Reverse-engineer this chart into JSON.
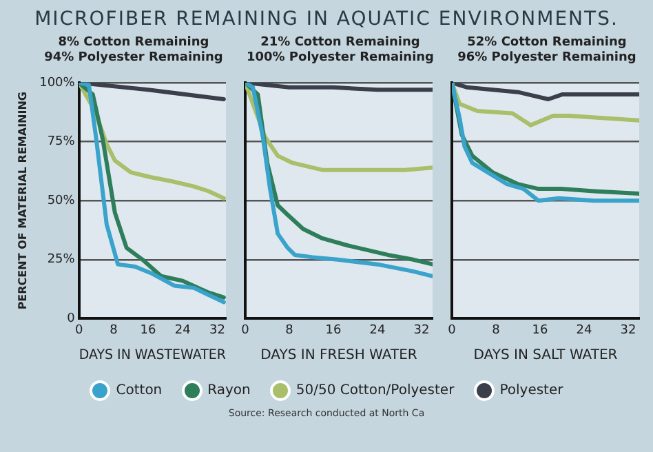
{
  "chart_data": [
    {
      "type": "line",
      "title": "MICROFIBER REMAINING IN AQUATIC ENVIRONMENTS.",
      "annotations": [
        "8% Cotton Remaining",
        "94% Polyester Remaining"
      ],
      "xlabel": "DAYS IN WASTEWATER",
      "ylabel": "PERCENT OF MATERIAL REMAINING",
      "xlim": [
        0,
        34
      ],
      "xticks": [
        0,
        8,
        16,
        24,
        32
      ],
      "ylim": [
        0,
        100
      ],
      "yticks": [
        {
          "value": 0,
          "label": "0"
        },
        {
          "value": 25,
          "label": "25%"
        },
        {
          "value": 50,
          "label": "50%"
        },
        {
          "value": 75,
          "label": "75%"
        },
        {
          "value": 100,
          "label": "100%"
        }
      ],
      "grid": "y",
      "marker": "none",
      "line_style": "solid",
      "legend": "bottom",
      "series": [
        {
          "name": "Cotton",
          "color": "#3aa3cc",
          "x": [
            0,
            2.3,
            4,
            6.4,
            9,
            13,
            17,
            22,
            26.6,
            30,
            33.5
          ],
          "values": [
            100,
            99,
            76,
            40,
            23,
            22,
            19,
            14,
            13,
            10,
            7
          ]
        },
        {
          "name": "Rayon",
          "color": "#2e7d5b",
          "x": [
            0,
            3.2,
            5.5,
            8.3,
            11,
            14.7,
            19,
            24,
            30,
            33.5
          ],
          "values": [
            100,
            95,
            76,
            45,
            30,
            25,
            18,
            16,
            11,
            9
          ]
        },
        {
          "name": "50/50 Cotton/Polyester",
          "color": "#a9bf6a",
          "x": [
            0,
            3.7,
            6.4,
            8.3,
            12,
            16.5,
            22,
            26.6,
            30,
            33.5
          ],
          "values": [
            100,
            88,
            74,
            67,
            62,
            60,
            58,
            56,
            54,
            51
          ]
        },
        {
          "name": "Polyester",
          "color": "#3a3f4b",
          "x": [
            0,
            16,
            33.5
          ],
          "values": [
            100,
            97,
            93
          ]
        }
      ]
    },
    {
      "type": "line",
      "annotations": [
        "21% Cotton Remaining",
        "100% Polyester Remaining"
      ],
      "xlabel": "DAYS IN FRESH WATER",
      "xlim": [
        0,
        34
      ],
      "xticks": [
        0,
        8,
        16,
        24,
        32
      ],
      "ylim": [
        0,
        100
      ],
      "yticks": [
        0,
        25,
        50,
        75,
        100
      ],
      "tick_labels": "x",
      "grid": "y",
      "marker": "none",
      "line_style": "solid",
      "series": [
        {
          "color": "#3aa3cc",
          "x": [
            0,
            1.4,
            3.2,
            4.5,
            5.9,
            7.7,
            9,
            12.3,
            16.8,
            24,
            30.5,
            34
          ],
          "values": [
            100,
            98,
            77,
            55,
            36,
            30,
            27,
            26,
            25,
            23,
            20,
            18
          ]
        },
        {
          "color": "#2e7d5b",
          "x": [
            0,
            2.3,
            4,
            5.9,
            7.7,
            10.5,
            14,
            18.6,
            25.9,
            30.5,
            34
          ],
          "values": [
            100,
            95,
            66,
            48,
            44,
            38,
            34,
            31,
            27,
            25,
            23
          ]
        },
        {
          "color": "#a9bf6a",
          "x": [
            0,
            3.6,
            5.9,
            8.6,
            14,
            21,
            29,
            34
          ],
          "values": [
            100,
            77,
            69,
            66,
            63,
            63,
            63,
            64
          ]
        },
        {
          "color": "#3a3f4b",
          "x": [
            0,
            8,
            16,
            24,
            34
          ],
          "values": [
            100,
            98,
            98,
            97,
            97
          ]
        }
      ]
    },
    {
      "type": "line",
      "annotations": [
        "52% Cotton Remaining",
        "96% Polyester Remaining",
        "Source: Research conducted at North Ca"
      ],
      "xlabel": "DAYS IN SALT WATER",
      "xlim": [
        0,
        34
      ],
      "xticks": [
        0,
        8,
        16,
        24,
        32
      ],
      "ylim": [
        0,
        100
      ],
      "yticks": [
        0,
        25,
        50,
        75,
        100
      ],
      "tick_labels": "x",
      "grid": "y",
      "marker": "none",
      "line_style": "solid",
      "series": [
        {
          "color": "#3aa3cc",
          "x": [
            0,
            1.4,
            2.3,
            3.7,
            6.5,
            10,
            13,
            15.7,
            19.4,
            25.8,
            34
          ],
          "values": [
            100,
            85,
            73,
            66,
            62,
            57,
            55,
            50,
            51,
            50,
            50
          ]
        },
        {
          "color": "#2e7d5b",
          "x": [
            0,
            1.8,
            3.7,
            7.4,
            12,
            15.7,
            19.8,
            25.8,
            34
          ],
          "values": [
            100,
            78,
            69,
            62,
            57,
            55,
            55,
            54,
            53
          ]
        },
        {
          "color": "#a9bf6a",
          "x": [
            0,
            1.4,
            4.6,
            11,
            14.3,
            18.4,
            21.2,
            34
          ],
          "values": [
            100,
            91,
            88,
            87,
            82,
            86,
            86,
            84
          ]
        },
        {
          "color": "#3a3f4b",
          "x": [
            0,
            2.8,
            12,
            17.5,
            20,
            27.6,
            34
          ],
          "values": [
            100,
            98,
            96,
            93,
            95,
            95,
            95
          ]
        }
      ]
    }
  ]
}
